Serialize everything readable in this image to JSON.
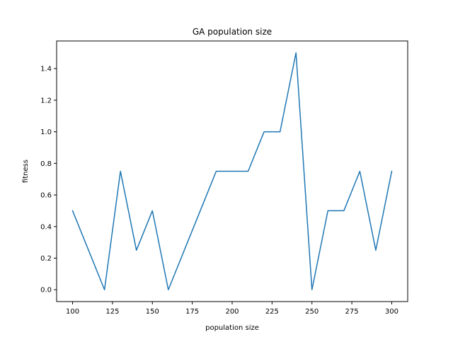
{
  "chart_data": {
    "type": "line",
    "title": "GA population size",
    "xlabel": "population size",
    "ylabel": "fitness",
    "xlim": [
      90,
      310
    ],
    "ylim": [
      -0.075,
      1.575
    ],
    "xticks": [
      100,
      125,
      150,
      175,
      200,
      225,
      250,
      275,
      300
    ],
    "yticks": [
      0.0,
      0.2,
      0.4,
      0.6,
      0.8,
      1.0,
      1.2,
      1.4
    ],
    "ytick_labels": [
      "0.0",
      "0.2",
      "0.4",
      "0.6",
      "0.8",
      "1.0",
      "1.2",
      "1.4"
    ],
    "grid": false,
    "series": [
      {
        "color": "#1f77b4",
        "x": [
          100,
          110,
          120,
          130,
          140,
          150,
          160,
          170,
          180,
          190,
          200,
          210,
          220,
          230,
          240,
          250,
          260,
          270,
          280,
          290,
          300
        ],
        "y": [
          0.5,
          0.25,
          0.0,
          0.75,
          0.25,
          0.5,
          0.0,
          0.25,
          0.5,
          0.75,
          0.75,
          0.75,
          1.0,
          1.0,
          1.5,
          0.0,
          0.5,
          0.5,
          0.75,
          0.25,
          0.75
        ]
      }
    ]
  }
}
